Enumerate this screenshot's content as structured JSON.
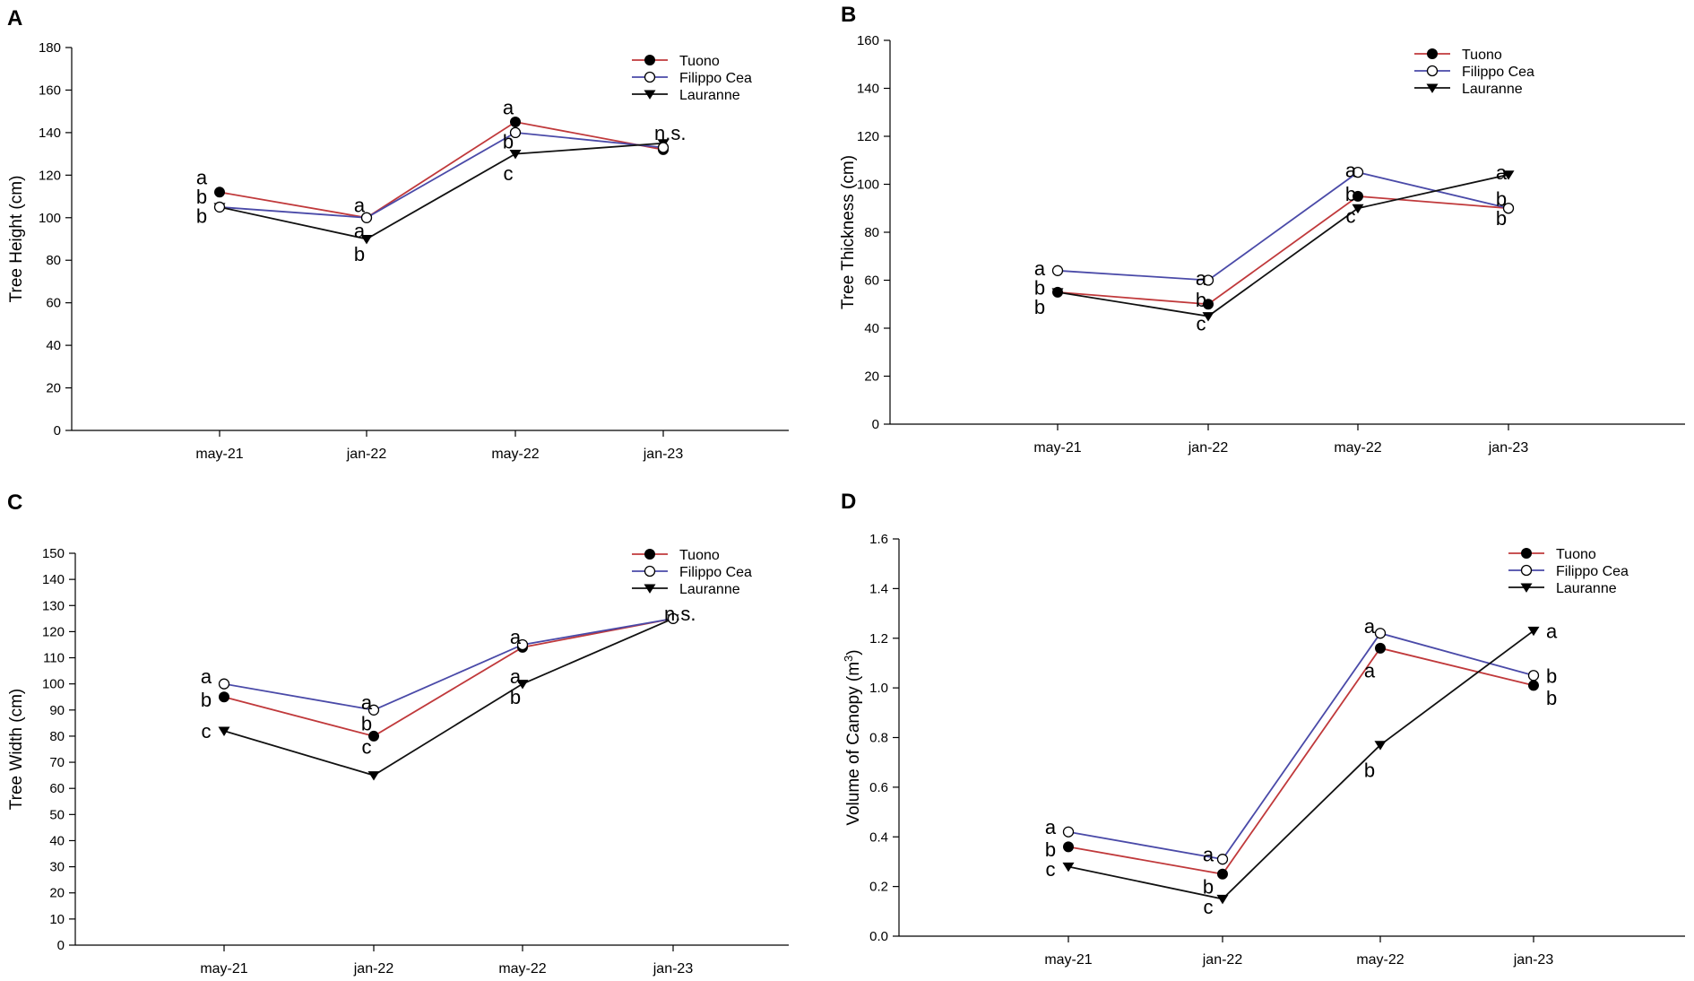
{
  "series_styles": [
    {
      "name": "Tuono",
      "color": "#c0393b",
      "marker": "filled-circle"
    },
    {
      "name": "Filippo Cea",
      "color": "#4a4aa8",
      "marker": "open-circle"
    },
    {
      "name": "Lauranne",
      "color": "#111111",
      "marker": "filled-triangle-down"
    }
  ],
  "chart_data": [
    {
      "panel": "A",
      "type": "line",
      "categories": [
        "may-21",
        "jan-22",
        "may-22",
        "jan-23"
      ],
      "ylabel": "Tree Height (cm)",
      "ylim": [
        0,
        180
      ],
      "yticks": [
        0,
        20,
        40,
        60,
        80,
        100,
        120,
        140,
        160,
        180
      ],
      "series": [
        {
          "name": "Tuono",
          "values": [
            112,
            100,
            145,
            132
          ]
        },
        {
          "name": "Filippo Cea",
          "values": [
            105,
            100,
            140,
            133
          ]
        },
        {
          "name": "Lauranne",
          "values": [
            105,
            90,
            130,
            135
          ]
        }
      ],
      "annotations": [
        {
          "category": 0,
          "value": 119,
          "text": "a"
        },
        {
          "category": 0,
          "value": 110,
          "text": "b"
        },
        {
          "category": 0,
          "value": 101,
          "text": "b"
        },
        {
          "category": 1,
          "value": 106,
          "text": "a"
        },
        {
          "category": 1,
          "value": 94,
          "text": "a"
        },
        {
          "category": 1,
          "value": 83,
          "text": "b"
        },
        {
          "category": 2,
          "value": 152,
          "text": "a"
        },
        {
          "category": 2,
          "value": 136,
          "text": "b"
        },
        {
          "category": 2,
          "value": 121,
          "text": "c"
        },
        {
          "category": 3,
          "value": 140,
          "text": "n.s."
        }
      ]
    },
    {
      "panel": "B",
      "type": "line",
      "categories": [
        "may-21",
        "jan-22",
        "may-22",
        "jan-23"
      ],
      "ylabel": "Tree Thickness (cm)",
      "ylim": [
        0,
        160
      ],
      "yticks": [
        0,
        20,
        40,
        60,
        80,
        100,
        120,
        140,
        160
      ],
      "series": [
        {
          "name": "Tuono",
          "values": [
            55,
            50,
            95,
            90
          ]
        },
        {
          "name": "Filippo Cea",
          "values": [
            64,
            60,
            105,
            90
          ]
        },
        {
          "name": "Lauranne",
          "values": [
            55,
            45,
            90,
            104
          ]
        }
      ],
      "annotations": [
        {
          "category": 0,
          "value": 65,
          "text": "a"
        },
        {
          "category": 0,
          "value": 57,
          "text": "b"
        },
        {
          "category": 0,
          "value": 49,
          "text": "b"
        },
        {
          "category": 1,
          "value": 61,
          "text": "a"
        },
        {
          "category": 1,
          "value": 52,
          "text": "b"
        },
        {
          "category": 1,
          "value": 42,
          "text": "c"
        },
        {
          "category": 2,
          "value": 106,
          "text": "a"
        },
        {
          "category": 2,
          "value": 96,
          "text": "b"
        },
        {
          "category": 2,
          "value": 87,
          "text": "c"
        },
        {
          "category": 3,
          "value": 105,
          "text": "a"
        },
        {
          "category": 3,
          "value": 94,
          "text": "b"
        },
        {
          "category": 3,
          "value": 86,
          "text": "b"
        }
      ]
    },
    {
      "panel": "C",
      "type": "line",
      "categories": [
        "may-21",
        "jan-22",
        "may-22",
        "jan-23"
      ],
      "ylabel": "Tree Width (cm)",
      "ylim": [
        0,
        150
      ],
      "yticks": [
        0,
        10,
        20,
        30,
        40,
        50,
        60,
        70,
        80,
        90,
        100,
        110,
        120,
        130,
        140,
        150
      ],
      "series": [
        {
          "name": "Tuono",
          "values": [
            95,
            80,
            114,
            125
          ]
        },
        {
          "name": "Filippo Cea",
          "values": [
            100,
            90,
            115,
            125
          ]
        },
        {
          "name": "Lauranne",
          "values": [
            82,
            65,
            100,
            125
          ]
        }
      ],
      "annotations": [
        {
          "category": 0,
          "value": 103,
          "text": "a"
        },
        {
          "category": 0,
          "value": 94,
          "text": "b"
        },
        {
          "category": 0,
          "value": 82,
          "text": "c"
        },
        {
          "category": 1,
          "value": 93,
          "text": "a"
        },
        {
          "category": 1,
          "value": 85,
          "text": "b"
        },
        {
          "category": 1,
          "value": 76,
          "text": "c"
        },
        {
          "category": 2,
          "value": 118,
          "text": "a"
        },
        {
          "category": 2,
          "value": 103,
          "text": "a"
        },
        {
          "category": 2,
          "value": 95,
          "text": "b"
        },
        {
          "category": 3,
          "value": 127,
          "text": "n.s."
        }
      ]
    },
    {
      "panel": "D",
      "type": "line",
      "categories": [
        "may-21",
        "jan-22",
        "may-22",
        "jan-23"
      ],
      "ylabel": "Volume of Canopy (m",
      "ylabel_superscript": "3",
      "ylabel_suffix": ")",
      "ylim": [
        0,
        1.6
      ],
      "yticks": [
        "0.0",
        "0.2",
        "0.4",
        "0.6",
        "0.8",
        "1.0",
        "1.2",
        "1.4",
        "1.6"
      ],
      "series": [
        {
          "name": "Tuono",
          "values": [
            0.36,
            0.25,
            1.16,
            1.01
          ]
        },
        {
          "name": "Filippo Cea",
          "values": [
            0.42,
            0.31,
            1.22,
            1.05
          ]
        },
        {
          "name": "Lauranne",
          "values": [
            0.28,
            0.15,
            0.77,
            1.23
          ]
        }
      ],
      "annotations": [
        {
          "category": 0,
          "value": 0.44,
          "text": "a"
        },
        {
          "category": 0,
          "value": 0.35,
          "text": "b"
        },
        {
          "category": 0,
          "value": 0.27,
          "text": "c"
        },
        {
          "category": 1,
          "value": 0.33,
          "text": "a"
        },
        {
          "category": 1,
          "value": 0.2,
          "text": "b"
        },
        {
          "category": 1,
          "value": 0.12,
          "text": "c"
        },
        {
          "category": 2,
          "value": 1.25,
          "text": "a"
        },
        {
          "category": 2,
          "value": 1.07,
          "text": "a"
        },
        {
          "category": 2,
          "value": 0.67,
          "text": "b"
        },
        {
          "category": 3,
          "value": 1.23,
          "text": "a"
        },
        {
          "category": 3,
          "value": 1.05,
          "text": "b"
        },
        {
          "category": 3,
          "value": 0.96,
          "text": "b"
        }
      ]
    }
  ]
}
